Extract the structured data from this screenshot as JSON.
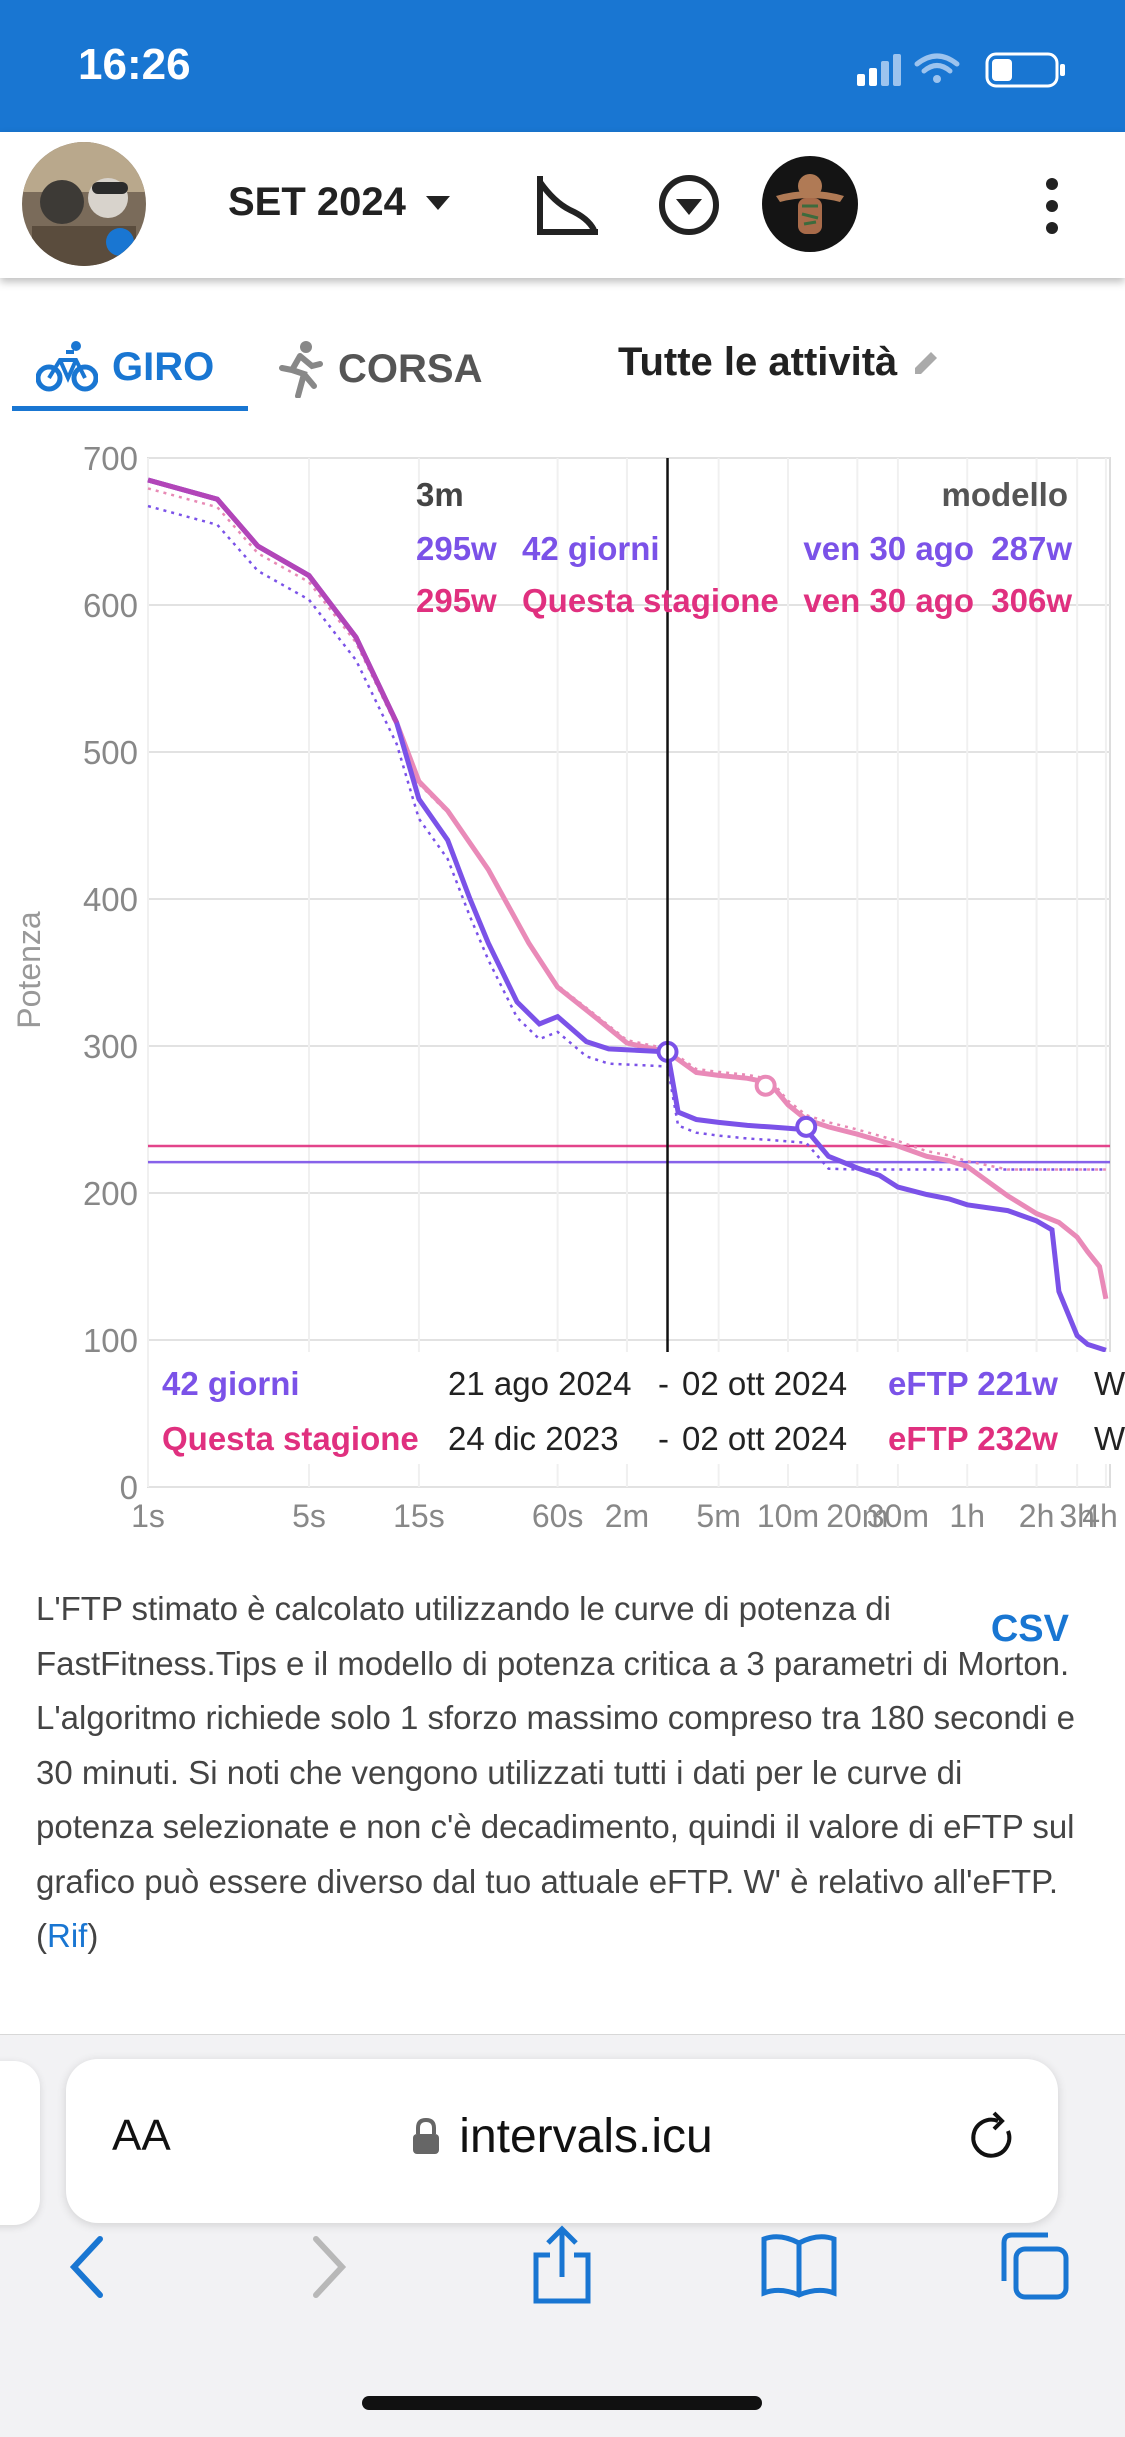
{
  "status_bar": {
    "time": "16:26"
  },
  "header": {
    "month": "SET 2024",
    "icons": [
      "power-curve-icon",
      "filter-dropdown-icon",
      "more-vertical-icon"
    ]
  },
  "tabs": [
    {
      "label": "GIRO",
      "icon": "bike-icon",
      "active": true
    },
    {
      "label": "CORSA",
      "icon": "run-icon",
      "active": false
    }
  ],
  "activities_filter": {
    "label": "Tutte le attività",
    "icon": "edit-pencil-icon"
  },
  "colors": {
    "accent": "#1976d2",
    "season_pink": "#e0307f",
    "days42_purple": "#7b52e8"
  },
  "chart_data": {
    "type": "line",
    "ylabel": "Potenza",
    "ylim": [
      0,
      700
    ],
    "yticks": [
      "0",
      "100",
      "200",
      "300",
      "400",
      "500",
      "600",
      "700"
    ],
    "x_scale": "log (duration)",
    "xticks": [
      "1s",
      "5s",
      "15s",
      "60s",
      "2m",
      "5m",
      "10m",
      "20m",
      "30m",
      "1h",
      "2h",
      "3h",
      "4h"
    ],
    "cursor": {
      "duration": "3m",
      "model_header": "modello",
      "rows": [
        {
          "power": "295w",
          "name": "42 giorni",
          "date": "ven 30 ago",
          "model": "287w"
        },
        {
          "power": "295w",
          "name": "Questa stagione",
          "date": "ven 30 ago",
          "model": "306w"
        }
      ]
    },
    "series": [
      {
        "name": "42 giorni",
        "range_start": "21 ago 2024",
        "range_end": "02 ott 2024",
        "eftp": "eFTP 221w",
        "w_prime": "W",
        "eftp_value": 221,
        "points": [
          [
            1,
            685
          ],
          [
            2,
            672
          ],
          [
            3,
            640
          ],
          [
            5,
            620
          ],
          [
            8,
            578
          ],
          [
            12,
            520
          ],
          [
            15,
            468
          ],
          [
            20,
            440
          ],
          [
            25,
            400
          ],
          [
            30,
            370
          ],
          [
            40,
            330
          ],
          [
            50,
            315
          ],
          [
            60,
            320
          ],
          [
            80,
            303
          ],
          [
            100,
            298
          ],
          [
            180,
            296
          ],
          [
            200,
            255
          ],
          [
            240,
            250
          ],
          [
            300,
            248
          ],
          [
            400,
            246
          ],
          [
            500,
            245
          ],
          [
            600,
            244
          ],
          [
            720,
            243
          ],
          [
            900,
            225
          ],
          [
            1200,
            217
          ],
          [
            1500,
            212
          ],
          [
            1800,
            204
          ],
          [
            2400,
            199
          ],
          [
            3000,
            196
          ],
          [
            3600,
            192
          ],
          [
            5400,
            188
          ],
          [
            7200,
            181
          ],
          [
            8400,
            175
          ],
          [
            9000,
            133
          ],
          [
            10800,
            103
          ],
          [
            12000,
            97
          ],
          [
            14400,
            93
          ]
        ]
      },
      {
        "name": "Questa stagione",
        "range_start": "24 dic 2023",
        "range_end": "02 ott 2024",
        "eftp": "eFTP 232w",
        "w_prime": "W",
        "eftp_value": 232,
        "points": [
          [
            1,
            685
          ],
          [
            2,
            672
          ],
          [
            3,
            640
          ],
          [
            5,
            620
          ],
          [
            8,
            578
          ],
          [
            12,
            520
          ],
          [
            15,
            480
          ],
          [
            20,
            460
          ],
          [
            30,
            420
          ],
          [
            45,
            370
          ],
          [
            60,
            340
          ],
          [
            90,
            318
          ],
          [
            120,
            302
          ],
          [
            180,
            296
          ],
          [
            240,
            282
          ],
          [
            300,
            280
          ],
          [
            400,
            278
          ],
          [
            500,
            275
          ],
          [
            600,
            260
          ],
          [
            720,
            250
          ],
          [
            900,
            245
          ],
          [
            1200,
            240
          ],
          [
            1800,
            232
          ],
          [
            2400,
            225
          ],
          [
            3000,
            222
          ],
          [
            3600,
            218
          ],
          [
            5400,
            198
          ],
          [
            7200,
            186
          ],
          [
            9000,
            180
          ],
          [
            10800,
            170
          ],
          [
            12000,
            160
          ],
          [
            13500,
            150
          ],
          [
            14400,
            128
          ]
        ]
      }
    ],
    "markers": [
      {
        "series": "Questa stagione",
        "x": 480,
        "y": 273
      },
      {
        "series": "42 giorni",
        "x": 720,
        "y": 245
      }
    ]
  },
  "description": {
    "text": "L'FTP stimato è calcolato utilizzando le curve di potenza di FastFitness.Tips e il modello di potenza critica a 3 parametri di Morton. L'algoritmo richiede solo 1 sforzo massimo compreso tra 180 secondi e 30 minuti. Si noti che vengono utilizzati tutti i dati per le curve di potenza selezionate e non c'è decadimento, quindi il valore di eFTP sul grafico può essere diverso dal tuo attuale eFTP. W' è relativo all'eFTP. (",
    "link": "Rif",
    "suffix": ")",
    "csv": "CSV"
  },
  "browser": {
    "text_size": "AA",
    "url": "intervals.icu"
  }
}
